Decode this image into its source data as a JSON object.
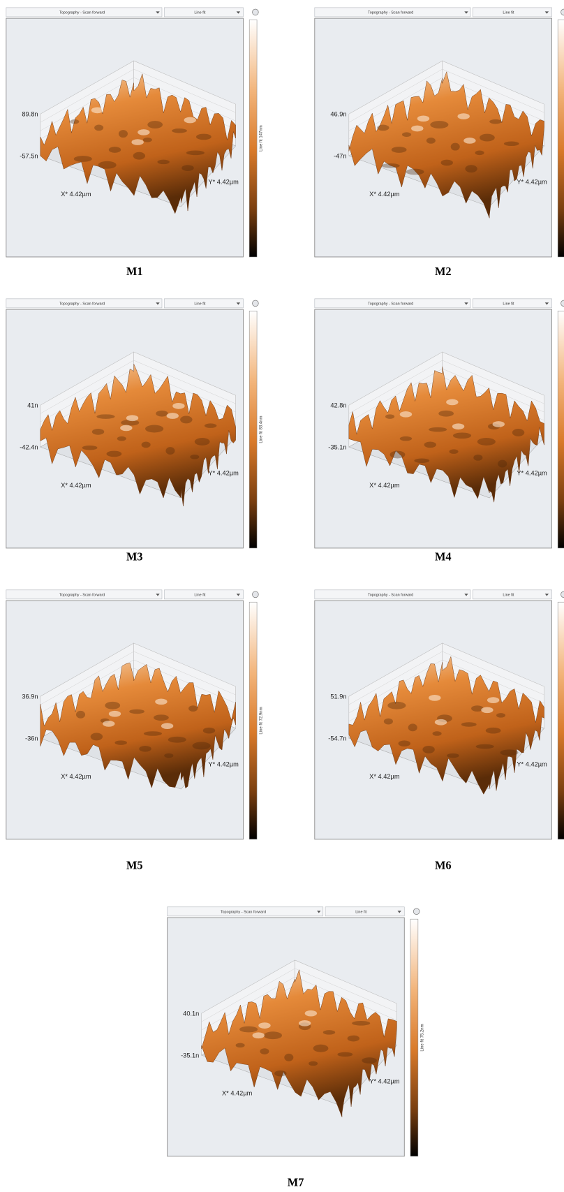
{
  "panels": [
    {
      "header": {
        "view": "Topography - Scan forward",
        "filter": "Line fit"
      },
      "z_max_label": "89.8n",
      "z_min_label": "-57.5n",
      "x_axis_label": "X* 4.42µm",
      "y_axis_label": "Y* 4.42µm",
      "colorbar_label": "Line fit 147nm",
      "caption": "M1"
    },
    {
      "header": {
        "view": "Topography - Scan forward",
        "filter": "Line fit"
      },
      "z_max_label": "46.9n",
      "z_min_label": "-47n",
      "x_axis_label": "X* 4.42µm",
      "y_axis_label": "Y* 4.42µm",
      "caption": "M2"
    },
    {
      "header": {
        "view": "Topography - Scan forward",
        "filter": "Line fit"
      },
      "z_max_label": "41n",
      "z_min_label": "-42.4n",
      "x_axis_label": "X* 4.42µm",
      "y_axis_label": "Y* 4.42µm",
      "colorbar_label": "Line fit 83.4nm",
      "caption": "M3"
    },
    {
      "header": {
        "view": "Topography - Scan forward",
        "filter": "Line fit"
      },
      "z_max_label": "42.8n",
      "z_min_label": "-35.1n",
      "x_axis_label": "X* 4.42µm",
      "y_axis_label": "Y* 4.42µm",
      "caption": "M4"
    },
    {
      "header": {
        "view": "Topography - Scan forward",
        "filter": "Line fit"
      },
      "z_max_label": "36.9n",
      "z_min_label": "-36n",
      "x_axis_label": "X* 4.42µm",
      "y_axis_label": "Y* 4.42µm",
      "colorbar_label": "Line fit 72.9nm",
      "caption": "M5"
    },
    {
      "header": {
        "view": "Topography - Scan forward",
        "filter": "Line fit"
      },
      "z_max_label": "51.9n",
      "z_min_label": "-54.7n",
      "x_axis_label": "X* 4.42µm",
      "y_axis_label": "Y* 4.42µm",
      "caption": "M6"
    },
    {
      "header": {
        "view": "Topography - Scan forward",
        "filter": "Line fit"
      },
      "z_max_label": "40.1n",
      "z_min_label": "-35.1n",
      "x_axis_label": "X* 4.42µm",
      "y_axis_label": "Y* 4.42µm",
      "colorbar_label": "Line fit 75.2nm",
      "caption": "M7"
    }
  ]
}
